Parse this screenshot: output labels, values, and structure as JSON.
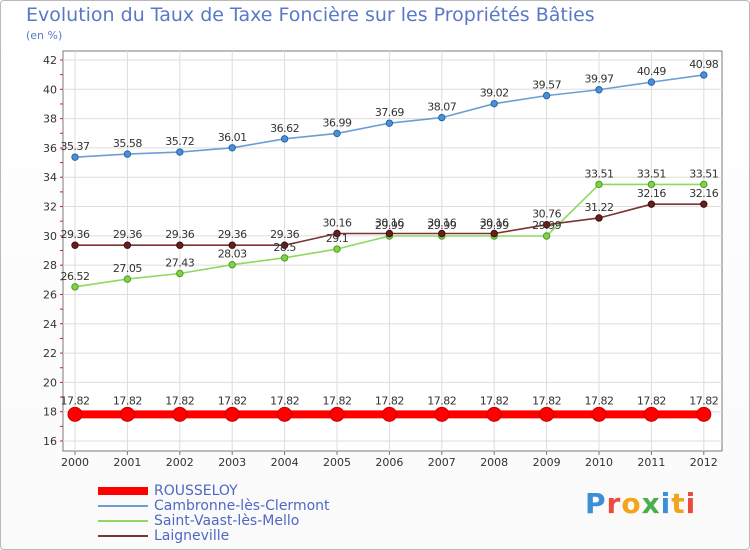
{
  "chart_data": {
    "type": "line",
    "title": "Evolution du Taux de Taxe Foncière sur les Propriétés Bâties",
    "ylabel": "(en %)",
    "xlabel": "",
    "x": [
      "2000",
      "2001",
      "2002",
      "2003",
      "2004",
      "2005",
      "2006",
      "2007",
      "2008",
      "2009",
      "2010",
      "2011",
      "2012"
    ],
    "ylim": [
      16,
      42
    ],
    "yticks": [
      16,
      18,
      20,
      22,
      24,
      26,
      28,
      30,
      32,
      34,
      36,
      38,
      40,
      42
    ],
    "grid": true,
    "legend_position": "bottom-left",
    "series": [
      {
        "name": "ROUSSELOY",
        "color": "#ff0000",
        "values": [
          17.82,
          17.82,
          17.82,
          17.82,
          17.82,
          17.82,
          17.82,
          17.82,
          17.82,
          17.82,
          17.82,
          17.82,
          17.82
        ],
        "labels": [
          "17.82",
          "17.82",
          "17.82",
          "17.82",
          "17.82",
          "17.82",
          "17.82",
          "17.82",
          "17.82",
          "17.82",
          "17.82",
          "17.82",
          "17.82"
        ]
      },
      {
        "name": "Cambronne-lès-Clermont",
        "color": "#6b9fd4",
        "values": [
          35.37,
          35.58,
          35.72,
          36.01,
          36.62,
          36.99,
          37.69,
          38.07,
          39.02,
          39.57,
          39.97,
          40.49,
          40.98
        ],
        "labels": [
          "35.37",
          "35.58",
          "35.72",
          "36.01",
          "36.62",
          "36.99",
          "37.69",
          "38.07",
          "39.02",
          "39.57",
          "39.97",
          "40.49",
          "40.98"
        ]
      },
      {
        "name": "Saint-Vaast-lès-Mello",
        "color": "#90d860",
        "values": [
          26.52,
          27.05,
          27.43,
          28.03,
          28.5,
          29.1,
          29.99,
          29.99,
          29.99,
          29.99,
          33.51,
          33.51,
          33.51
        ],
        "labels": [
          "26.52",
          "27.05",
          "27.43",
          "28.03",
          "28.5",
          "29.1",
          "29.99",
          "29.99",
          "29.99",
          "29.99",
          "33.51",
          "33.51",
          "33.51"
        ]
      },
      {
        "name": "Laigneville",
        "color": "#7a3535",
        "values": [
          29.36,
          29.36,
          29.36,
          29.36,
          29.36,
          30.16,
          30.16,
          30.16,
          30.16,
          30.76,
          31.22,
          32.16,
          32.16
        ],
        "labels": [
          "29.36",
          "29.36",
          "29.36",
          "29.36",
          "29.36",
          "30.16",
          "30.16",
          "30.16",
          "30.16",
          "30.76",
          "31.22",
          "32.16",
          "32.16"
        ]
      }
    ]
  },
  "brand": {
    "text": "Proxiti",
    "letter_colors": [
      "#3b8fd6",
      "#e94b3c",
      "#f2a41b",
      "#4cae4c",
      "#3b8fd6",
      "#f2a41b",
      "#e94b3c"
    ]
  }
}
